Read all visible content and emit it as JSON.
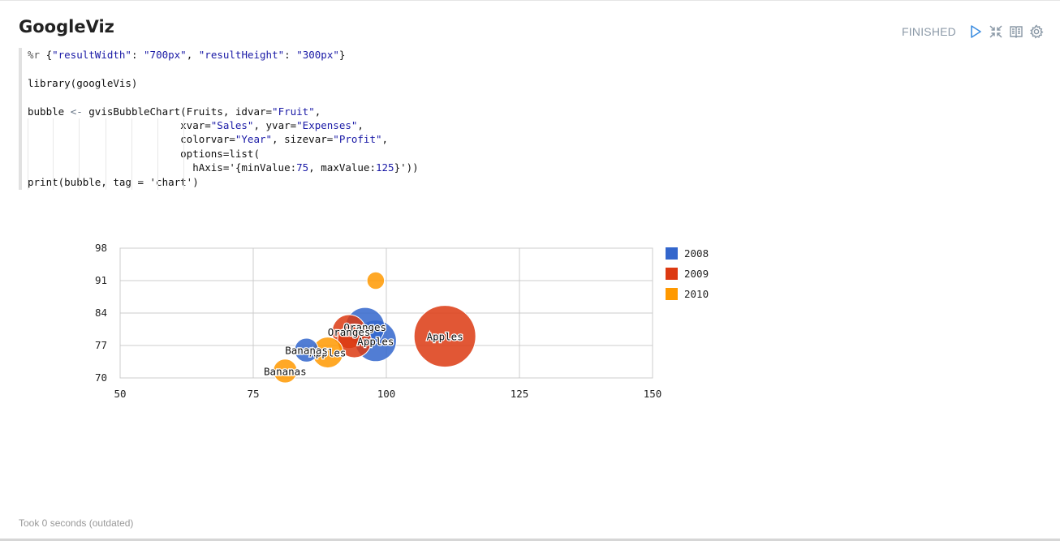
{
  "paragraph": {
    "title": "GoogleViz",
    "status": "FINISHED",
    "footer": "Took 0 seconds (outdated)",
    "icons": [
      "play-icon",
      "collapse-icon",
      "book-icon",
      "gear-icon"
    ]
  },
  "code": {
    "lines": [
      [
        {
          "t": "k",
          "v": "%r "
        },
        {
          "t": "",
          "v": "{"
        },
        {
          "t": "s",
          "v": "\"resultWidth\""
        },
        {
          "t": "",
          "v": ": "
        },
        {
          "t": "s",
          "v": "\"700px\""
        },
        {
          "t": "",
          "v": ", "
        },
        {
          "t": "s",
          "v": "\"resultHeight\""
        },
        {
          "t": "",
          "v": ": "
        },
        {
          "t": "s",
          "v": "\"300px\""
        },
        {
          "t": "",
          "v": "}"
        }
      ],
      [],
      [
        {
          "t": "",
          "v": "library(googleVis)"
        }
      ],
      [],
      [
        {
          "t": "",
          "v": "bubble "
        },
        {
          "t": "op",
          "v": "<-"
        },
        {
          "t": "",
          "v": " gvisBubbleChart(Fruits, idvar="
        },
        {
          "t": "s",
          "v": "\"Fruit\""
        },
        {
          "t": "",
          "v": ","
        }
      ],
      [
        {
          "t": "",
          "v": "                         xvar="
        },
        {
          "t": "s",
          "v": "\"Sales\""
        },
        {
          "t": "",
          "v": ", yvar="
        },
        {
          "t": "s",
          "v": "\"Expenses\""
        },
        {
          "t": "",
          "v": ","
        }
      ],
      [
        {
          "t": "",
          "v": "                         colorvar="
        },
        {
          "t": "s",
          "v": "\"Year\""
        },
        {
          "t": "",
          "v": ", sizevar="
        },
        {
          "t": "s",
          "v": "\"Profit\""
        },
        {
          "t": "",
          "v": ","
        }
      ],
      [
        {
          "t": "",
          "v": "                         options=list("
        }
      ],
      [
        {
          "t": "",
          "v": "                           hAxis='{minValue:"
        },
        {
          "t": "n",
          "v": "75"
        },
        {
          "t": "",
          "v": ", maxValue:"
        },
        {
          "t": "n",
          "v": "125"
        },
        {
          "t": "",
          "v": "}'))"
        }
      ],
      [
        {
          "t": "",
          "v": "print(bubble, tag = 'chart')"
        }
      ]
    ]
  },
  "chart_data": {
    "type": "scatter",
    "xlim": [
      50,
      150
    ],
    "ylim": [
      70,
      98
    ],
    "xticks": [
      50,
      75,
      100,
      125,
      150
    ],
    "yticks": [
      70,
      77,
      84,
      91,
      98
    ],
    "grid": true,
    "legend_position": "right",
    "legend": [
      {
        "name": "2008",
        "color": "#3366cc"
      },
      {
        "name": "2009",
        "color": "#dc3912"
      },
      {
        "name": "2010",
        "color": "#ff9900"
      }
    ],
    "points": [
      {
        "label": "Apples",
        "x": 111,
        "y": 79,
        "size": 1.0,
        "color": "#dc3912",
        "show_label": true
      },
      {
        "label": "Apples",
        "x": 98,
        "y": 78,
        "size": 0.45,
        "color": "#3366cc",
        "show_label": true
      },
      {
        "label": "Oranges",
        "x": 96,
        "y": 81,
        "size": 0.4,
        "color": "#3366cc",
        "show_label": true
      },
      {
        "label": "Oranges",
        "x": 93,
        "y": 80,
        "size": 0.3,
        "color": "#dc3912",
        "show_label": true
      },
      {
        "label": "Apples",
        "x": 94,
        "y": 78,
        "size": 0.3,
        "color": "#dc3912",
        "show_label": false
      },
      {
        "label": "Apples",
        "x": 98,
        "y": 91,
        "size": 0.08,
        "color": "#ff9900",
        "show_label": false
      },
      {
        "label": "Bananas",
        "x": 85,
        "y": 76,
        "size": 0.15,
        "color": "#3366cc",
        "show_label": true
      },
      {
        "label": "Apples",
        "x": 89,
        "y": 75.5,
        "size": 0.25,
        "color": "#ff9900",
        "show_label": true
      },
      {
        "label": "Bananas",
        "x": 81,
        "y": 71.5,
        "size": 0.15,
        "color": "#ff9900",
        "show_label": true
      }
    ]
  }
}
